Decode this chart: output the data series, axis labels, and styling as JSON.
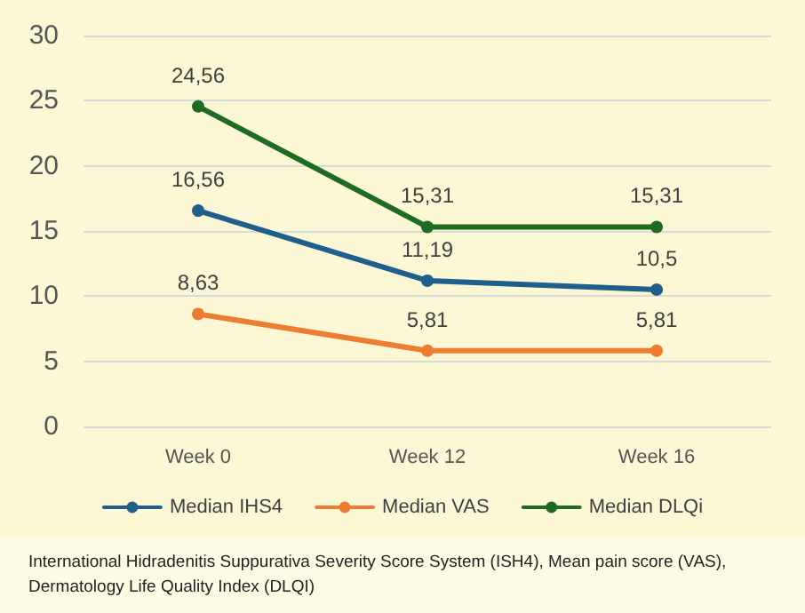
{
  "chart_data": {
    "type": "line",
    "categories": [
      "Week 0",
      "Week 12",
      "Week 16"
    ],
    "series": [
      {
        "name": "Median IHS4",
        "color": "#1f5f8b",
        "values": [
          16.56,
          11.19,
          10.5
        ],
        "value_labels": [
          "16,56",
          "11,19",
          "10,5"
        ]
      },
      {
        "name": "Median VAS",
        "color": "#ed7d31",
        "values": [
          8.63,
          5.81,
          5.81
        ],
        "value_labels": [
          "8,63",
          "5,81",
          "5,81"
        ]
      },
      {
        "name": "Median DLQi",
        "color": "#1e6b24",
        "values": [
          24.56,
          15.31,
          15.31
        ],
        "value_labels": [
          "24,56",
          "15,31",
          "15,31"
        ]
      }
    ],
    "ylim": [
      0,
      30
    ],
    "yticks": [
      0,
      5,
      10,
      15,
      20,
      25,
      30
    ],
    "grid": "y",
    "legend": "bottom",
    "marker": "circle",
    "line_style": "solid",
    "annotations": [
      "International Hidradenitis Suppurativa Severity Score System (ISH4), Mean pain score (VAS), Dermatology Life Quality Index (DLQI)"
    ]
  }
}
